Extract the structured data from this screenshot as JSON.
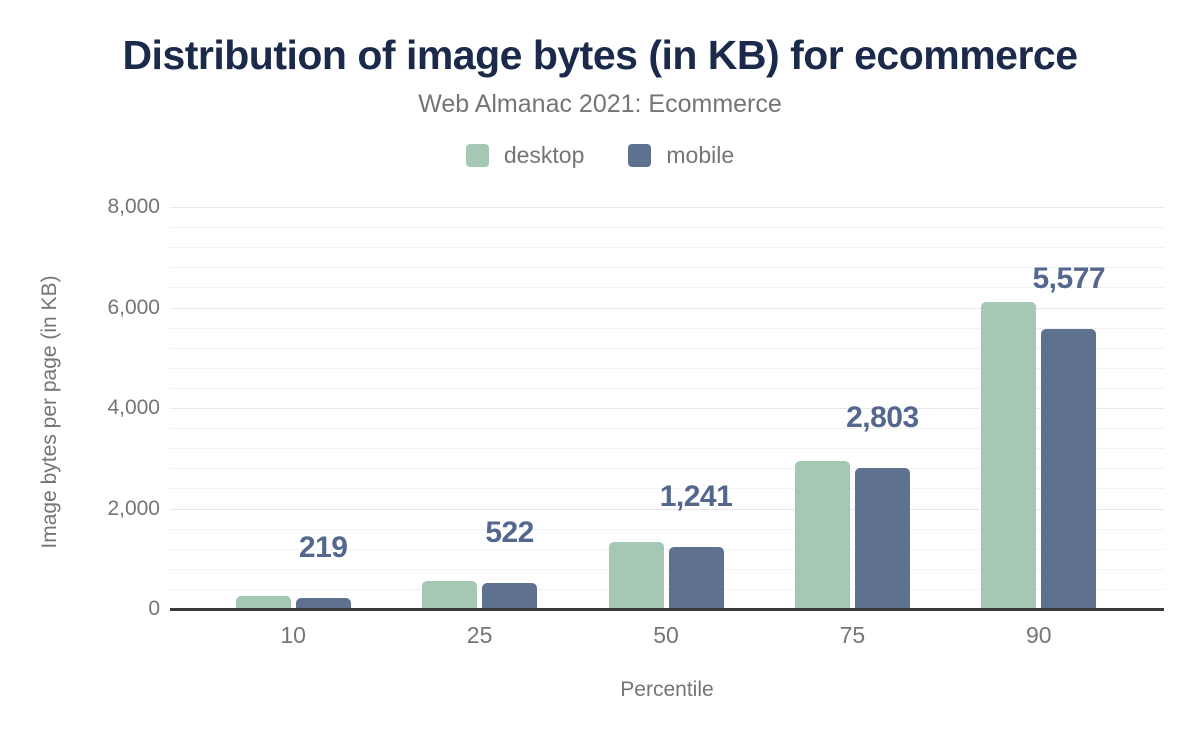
{
  "title": "Distribution of image bytes (in KB) for ecommerce",
  "subtitle": "Web Almanac 2021: Ecommerce",
  "legend": [
    {
      "label": "desktop",
      "color": "#a5c8b5"
    },
    {
      "label": "mobile",
      "color": "#5e7190"
    }
  ],
  "colors": {
    "title": "#1b2a4a",
    "subtitle": "#757575",
    "axis_text": "#757575",
    "data_label": "#54678e",
    "axis_line": "#3a3a3a",
    "desktop_bar": "#a5c8b5",
    "mobile_bar": "#5e7190"
  },
  "chart_data": {
    "type": "bar",
    "title": "Distribution of image bytes (in KB) for ecommerce",
    "subtitle": "Web Almanac 2021: Ecommerce",
    "categories": [
      "10",
      "25",
      "50",
      "75",
      "90"
    ],
    "series": [
      {
        "name": "desktop",
        "color": "#a5c8b5",
        "values": [
          250,
          565,
          1330,
          2950,
          6100
        ]
      },
      {
        "name": "mobile",
        "color": "#5e7190",
        "values": [
          219,
          522,
          1241,
          2803,
          5577
        ],
        "data_labels": [
          "219",
          "522",
          "1,241",
          "2,803",
          "5,577"
        ]
      }
    ],
    "xlabel": "Percentile",
    "ylabel": "Image bytes per page (in KB)",
    "ylim": [
      0,
      8000
    ],
    "ytick_step": 2000,
    "yminor_step": 400,
    "ytick_labels": [
      "0",
      "2,000",
      "4,000",
      "6,000",
      "8,000"
    ],
    "grid": "horizontal, light gray majors every 2000 with faint minors every 400",
    "legend_position": "top center"
  }
}
